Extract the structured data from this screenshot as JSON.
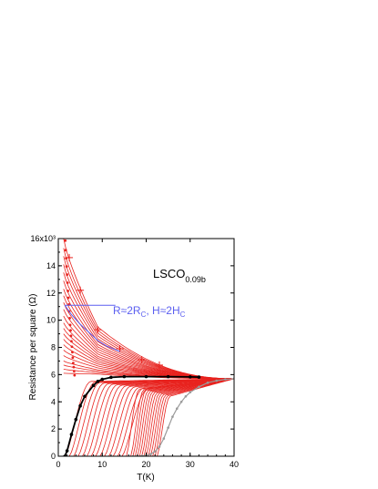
{
  "chart_data": {
    "type": "line",
    "title": "LSCO",
    "title_subscript": "0.09b",
    "xlabel": "T(K)",
    "ylabel": "Resistance per square (Ω)",
    "xlim": [
      0,
      40
    ],
    "ylim": [
      0,
      16000
    ],
    "x_ticks": [
      0,
      10,
      20,
      30,
      40
    ],
    "x_tick_labels": [
      "0",
      "10",
      "20",
      "30",
      "40"
    ],
    "y_ticks": [
      0,
      2000,
      4000,
      6000,
      8000,
      10000,
      12000,
      14000,
      16000
    ],
    "y_tick_labels": [
      "0",
      "2",
      "4",
      "6",
      "8",
      "10",
      "12",
      "14",
      "16x10³"
    ],
    "grid": false,
    "legend": "none",
    "annotation": {
      "text_main": "R≈2R",
      "sub1": "C",
      "text_mid": ", H≈2H",
      "sub2": "C",
      "line_from": [
        1.5,
        11100
      ],
      "line_to": [
        13,
        11100
      ]
    },
    "colors": {
      "field_curves": "#e8231f",
      "critical_curve": "#000000",
      "zero_field_curve": "#9a9a9a",
      "annotation": "#5b5ff0"
    },
    "series": [
      {
        "role": "zero-field",
        "color": "#9a9a9a",
        "points": [
          [
            17,
            0
          ],
          [
            19,
            20
          ],
          [
            20,
            60
          ],
          [
            21,
            150
          ],
          [
            22,
            350
          ],
          [
            23,
            700
          ],
          [
            24,
            1300
          ],
          [
            25,
            2100
          ],
          [
            26,
            2900
          ],
          [
            27,
            3500
          ],
          [
            28,
            4000
          ],
          [
            29,
            4400
          ],
          [
            30,
            4700
          ],
          [
            32,
            5100
          ],
          [
            34,
            5400
          ],
          [
            36,
            5550
          ],
          [
            38,
            5650
          ],
          [
            40,
            5700
          ]
        ]
      },
      {
        "role": "separatrix",
        "color": "#000000",
        "points": [
          [
            1.5,
            0
          ],
          [
            2,
            400
          ],
          [
            3,
            1600
          ],
          [
            4,
            2700
          ],
          [
            5,
            3700
          ],
          [
            6,
            4400
          ],
          [
            8,
            5200
          ],
          [
            9,
            5500
          ],
          [
            10,
            5650
          ],
          [
            12,
            5800
          ],
          [
            15,
            5850
          ],
          [
            20,
            5850
          ],
          [
            25,
            5850
          ],
          [
            30,
            5830
          ],
          [
            32,
            5820
          ]
        ]
      }
    ],
    "field_curve_families": {
      "insulating": {
        "count": 22,
        "low_T_values": [
          16000,
          15300,
          14700,
          14100,
          13500,
          12900,
          12300,
          11800,
          11300,
          10800,
          10300,
          9800,
          9400,
          9000,
          8600,
          8200,
          7800,
          7400,
          7000,
          6700,
          6400,
          6100
        ],
        "knee_T": 9,
        "merge_T": 40,
        "merge_value": 5700
      },
      "superconducting": {
        "count": 28,
        "onset_T_values": [
          1.5,
          2.5,
          3.5,
          4.5,
          5.5,
          6.5,
          7.5,
          8.5,
          9.5,
          10.5,
          11.5,
          12.5,
          13.5,
          14.5,
          15.5,
          16.5,
          17,
          17.5,
          18,
          18.5,
          19,
          19.5,
          20,
          20.5,
          21,
          21.5,
          22,
          22.5
        ],
        "merge_value": 5700
      }
    }
  }
}
